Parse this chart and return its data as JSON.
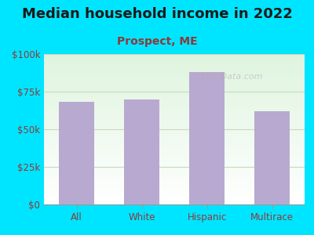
{
  "title": "Median household income in 2022",
  "subtitle": "Prospect, ME",
  "categories": [
    "All",
    "White",
    "Hispanic",
    "Multirace"
  ],
  "values": [
    68000,
    70000,
    88000,
    62000
  ],
  "bar_color": "#b8a9d0",
  "background_outer": "#00e5ff",
  "title_fontsize": 13,
  "subtitle_fontsize": 10,
  "ylim": [
    0,
    100000
  ],
  "yticks": [
    0,
    25000,
    50000,
    75000,
    100000
  ],
  "ytick_labels": [
    "$0",
    "$25k",
    "$50k",
    "$75k",
    "$100k"
  ],
  "title_color": "#1a1a1a",
  "subtitle_color": "#8b3a3a",
  "tick_color": "#8b3a3a",
  "grid_color": "#c8d8c0",
  "watermark": "City-Data.com"
}
